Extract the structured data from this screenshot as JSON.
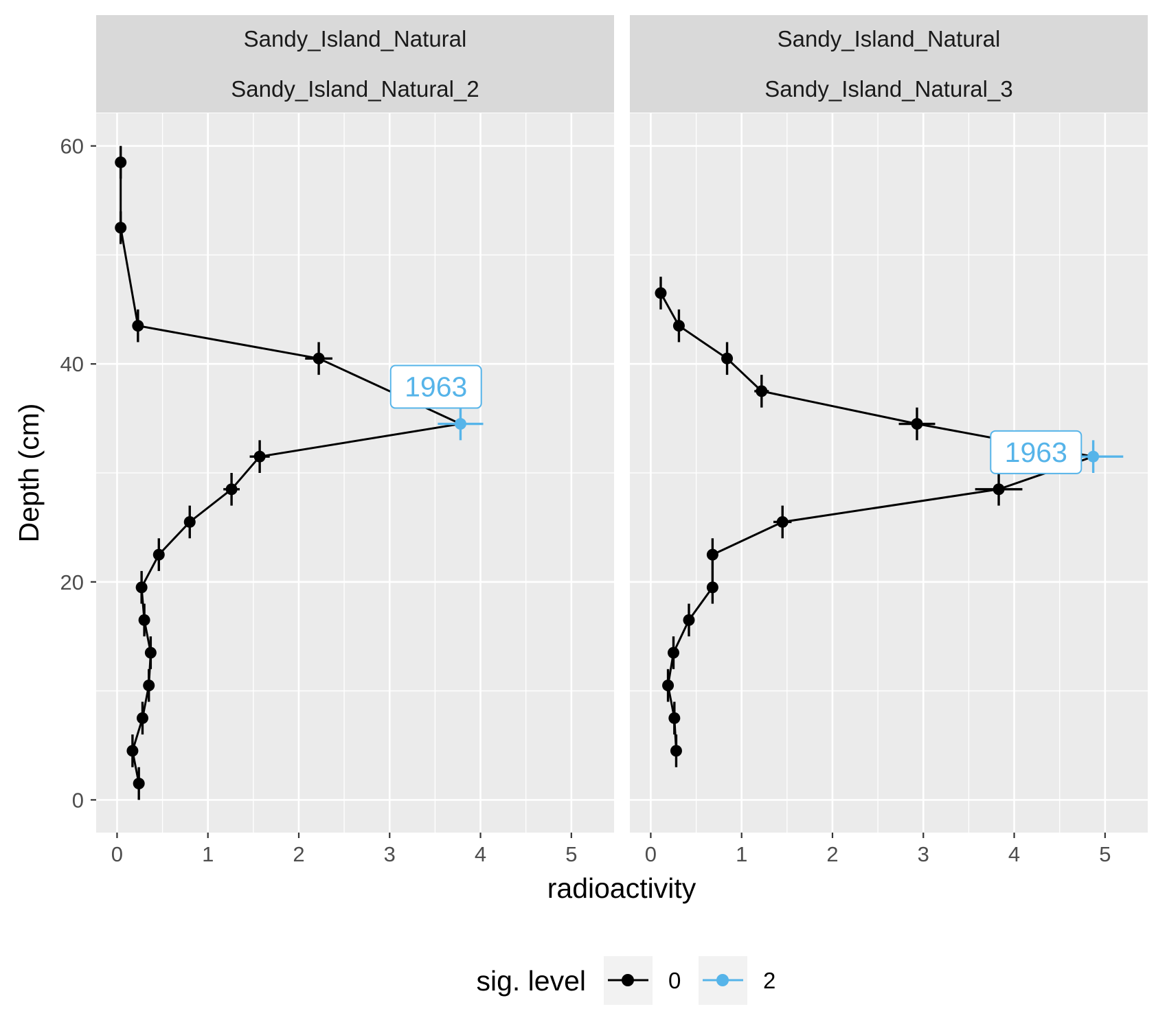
{
  "chart_data": {
    "type": "line",
    "facet_title": "Sandy_Island_Natural",
    "xlabel": "radioactivity",
    "ylabel": "Depth (cm)",
    "xlim": [
      -0.23,
      5.47
    ],
    "ylim": [
      63,
      -3
    ],
    "y_reversed": true,
    "x_ticks": [
      "0",
      "1",
      "2",
      "3",
      "4",
      "5"
    ],
    "y_ticks": [
      "0",
      "20",
      "40",
      "60"
    ],
    "grid": true,
    "legend": {
      "title": "sig. level",
      "position": "bottom",
      "entries": [
        {
          "label": "0",
          "color": "#000000"
        },
        {
          "label": "2",
          "color": "#56B4E9"
        }
      ]
    },
    "panels": [
      {
        "title": "Sandy_Island_Natural_2",
        "points": [
          {
            "x": 0.24,
            "y": 1.5,
            "xerr": 0.03,
            "yerr": 1.5,
            "sig": "0"
          },
          {
            "x": 0.17,
            "y": 4.5,
            "xerr": 0.03,
            "yerr": 1.5,
            "sig": "0"
          },
          {
            "x": 0.28,
            "y": 7.5,
            "xerr": 0.03,
            "yerr": 1.5,
            "sig": "0"
          },
          {
            "x": 0.35,
            "y": 10.5,
            "xerr": 0.03,
            "yerr": 1.5,
            "sig": "0"
          },
          {
            "x": 0.37,
            "y": 13.5,
            "xerr": 0.03,
            "yerr": 1.5,
            "sig": "0"
          },
          {
            "x": 0.3,
            "y": 16.5,
            "xerr": 0.03,
            "yerr": 1.5,
            "sig": "0"
          },
          {
            "x": 0.27,
            "y": 19.5,
            "xerr": 0.03,
            "yerr": 1.5,
            "sig": "0"
          },
          {
            "x": 0.46,
            "y": 22.5,
            "xerr": 0.04,
            "yerr": 1.5,
            "sig": "0"
          },
          {
            "x": 0.8,
            "y": 25.5,
            "xerr": 0.06,
            "yerr": 1.5,
            "sig": "0"
          },
          {
            "x": 1.26,
            "y": 28.5,
            "xerr": 0.09,
            "yerr": 1.5,
            "sig": "0"
          },
          {
            "x": 1.57,
            "y": 31.5,
            "xerr": 0.11,
            "yerr": 1.5,
            "sig": "0"
          },
          {
            "x": 3.78,
            "y": 34.5,
            "xerr": 0.25,
            "yerr": 1.5,
            "sig": "2"
          },
          {
            "x": 2.22,
            "y": 40.5,
            "xerr": 0.15,
            "yerr": 1.5,
            "sig": "0"
          },
          {
            "x": 0.23,
            "y": 43.5,
            "xerr": 0.03,
            "yerr": 1.5,
            "sig": "0"
          },
          {
            "x": 0.04,
            "y": 52.5,
            "xerr": 0.02,
            "yerr": 1.5,
            "sig": "0"
          },
          {
            "x": 0.04,
            "y": 58.5,
            "xerr": 0.02,
            "yerr": 1.5,
            "sig": "0"
          }
        ],
        "annotation": {
          "text": "1963",
          "x": 3.51,
          "y": 37.9
        }
      },
      {
        "title": "Sandy_Island_Natural_3",
        "points": [
          {
            "x": 0.28,
            "y": 4.5,
            "xerr": 0.03,
            "yerr": 1.5,
            "sig": "0"
          },
          {
            "x": 0.26,
            "y": 7.5,
            "xerr": 0.03,
            "yerr": 1.5,
            "sig": "0"
          },
          {
            "x": 0.19,
            "y": 10.5,
            "xerr": 0.03,
            "yerr": 1.5,
            "sig": "0"
          },
          {
            "x": 0.25,
            "y": 13.5,
            "xerr": 0.03,
            "yerr": 1.5,
            "sig": "0"
          },
          {
            "x": 0.42,
            "y": 16.5,
            "xerr": 0.04,
            "yerr": 1.5,
            "sig": "0"
          },
          {
            "x": 0.68,
            "y": 19.5,
            "xerr": 0.05,
            "yerr": 1.5,
            "sig": "0"
          },
          {
            "x": 0.68,
            "y": 22.5,
            "xerr": 0.05,
            "yerr": 1.5,
            "sig": "0"
          },
          {
            "x": 1.45,
            "y": 25.5,
            "xerr": 0.1,
            "yerr": 1.5,
            "sig": "0"
          },
          {
            "x": 3.83,
            "y": 28.5,
            "xerr": 0.26,
            "yerr": 1.5,
            "sig": "0"
          },
          {
            "x": 4.87,
            "y": 31.5,
            "xerr": 0.33,
            "yerr": 1.5,
            "sig": "2"
          },
          {
            "x": 2.93,
            "y": 34.5,
            "xerr": 0.2,
            "yerr": 1.5,
            "sig": "0"
          },
          {
            "x": 1.22,
            "y": 37.5,
            "xerr": 0.08,
            "yerr": 1.5,
            "sig": "0"
          },
          {
            "x": 0.84,
            "y": 40.5,
            "xerr": 0.06,
            "yerr": 1.5,
            "sig": "0"
          },
          {
            "x": 0.31,
            "y": 43.5,
            "xerr": 0.03,
            "yerr": 1.5,
            "sig": "0"
          },
          {
            "x": 0.11,
            "y": 46.5,
            "xerr": 0.02,
            "yerr": 1.5,
            "sig": "0"
          }
        ],
        "annotation": {
          "text": "1963",
          "x": 4.24,
          "y": 31.9
        }
      }
    ]
  }
}
